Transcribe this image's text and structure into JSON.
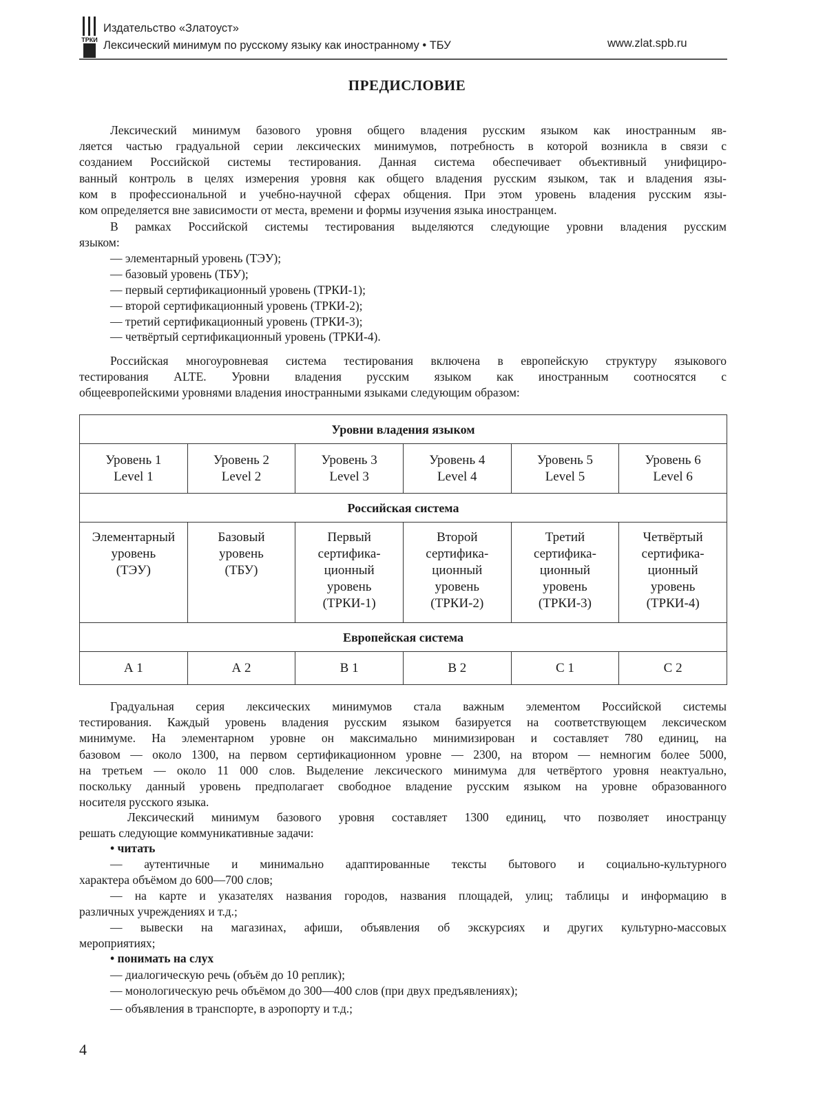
{
  "header": {
    "publisher": "Издательство «Златоуст»",
    "book": "Лексический минимум по русскому языку как иностранному • ТБУ",
    "url": "www.zlat.spb.ru",
    "logo_text": "ТРКИ"
  },
  "title": "ПРЕДИСЛОВИЕ",
  "blocks_top": [
    {
      "cls": "ind",
      "lines": [
        "Лексический минимум базового уровня общего владения русским языком как иностранным яв-",
        "ляется частью градуальной серии лексических минимумов, потребность в которой возникла в связи с",
        "созданием Российской системы тестирования. Данная система обеспечивает объективный унифициро-",
        "ванный контроль в целях измерения уровня как общего владения русским языком, так и владения язы-",
        "ком в профессиональной и учебно-научной сферах общения. При этом уровень владения русским язы-",
        "ком определяется вне зависимости от места, времени и формы изучения языка иностранцем."
      ]
    },
    {
      "cls": "ind",
      "lines": [
        "В рамках Российской системы тестирования выделяются следующие уровни владения русским",
        "языком:"
      ]
    },
    {
      "cls": "ind",
      "lines": [
        "— элементарный уровень (ТЭУ);"
      ]
    },
    {
      "cls": "ind",
      "lines": [
        "— базовый уровень (ТБУ);"
      ]
    },
    {
      "cls": "ind",
      "lines": [
        "— первый сертификационный уровень (ТРКИ-1);"
      ]
    },
    {
      "cls": "ind",
      "lines": [
        "— второй сертификационный уровень (ТРКИ-2);"
      ]
    },
    {
      "cls": "ind",
      "lines": [
        "— третий сертификационный уровень (ТРКИ-3);"
      ]
    },
    {
      "cls": "ind",
      "lines": [
        "— четвёртый сертификационный уровень (ТРКИ-4)."
      ]
    },
    {
      "cls": "ind",
      "lines": [
        "Российская многоуровневая система тестирования включена в европейскую структуру языкового",
        "тестирования ALTE. Уровни владения русским языком как иностранным соотносятся с",
        "общеевропейскими уровнями владения иностранными языками следующим образом:"
      ]
    }
  ],
  "table": {
    "header": "Уровни владения языком",
    "levels": [
      [
        "Уровень 1",
        "Level 1"
      ],
      [
        "Уровень 2",
        "Level 2"
      ],
      [
        "Уровень 3",
        "Level 3"
      ],
      [
        "Уровень 4",
        "Level 4"
      ],
      [
        "Уровень 5",
        "Level 5"
      ],
      [
        "Уровень 6",
        "Level 6"
      ]
    ],
    "russian_header": "Российская система",
    "russian": [
      [
        "Элементарный",
        "уровень",
        "(ТЭУ)"
      ],
      [
        "Базовый",
        "уровень",
        "(ТБУ)"
      ],
      [
        "Первый",
        "сертифика-",
        "ционный",
        "уровень",
        "(ТРКИ-1)"
      ],
      [
        "Второй",
        "сертифика-",
        "ционный",
        "уровень",
        "(ТРКИ-2)"
      ],
      [
        "Третий",
        "сертифика-",
        "ционный",
        "уровень",
        "(ТРКИ-3)"
      ],
      [
        "Четвёртый",
        "сертифика-",
        "ционный",
        "уровень",
        "(ТРКИ-4)"
      ]
    ],
    "european_header": "Европейская система",
    "european": [
      "А 1",
      "А 2",
      "В 1",
      "В 2",
      "С 1",
      "С 2"
    ]
  },
  "blocks_bottom": [
    {
      "cls": "ind",
      "lines": [
        "Градуальная серия лексических минимумов стала важным элементом Российской системы",
        "тестирования. Каждый уровень владения русским языком базируется на соответствующем лексическом",
        "минимуме. На элементарном уровне он максимально минимизирован и составляет 780 единиц, на",
        "базовом — около 1300, на первом сертификационном уровне — 2300, на втором — немногим более 5000,",
        "на третьем — около 11 000 слов. Выделение лексического минимума для четвёртого уровня неактуально,",
        "поскольку данный уровень предполагает свободное владение русским языком на уровне образованного",
        "носителя русского языка."
      ]
    },
    {
      "cls": "ind2",
      "lines": [
        "Лексический минимум базового уровня составляет 1300 единиц, что позволяет иностранцу",
        "решать следующие коммуникативные задачи:"
      ]
    },
    {
      "cls": "ind b",
      "lines": [
        "• читать"
      ]
    },
    {
      "cls": "ind",
      "lines": [
        "— аутентичные и минимально адаптированные тексты бытового и социально-культурного",
        "характера объёмом до 600—700 слов;"
      ]
    },
    {
      "cls": "ind",
      "lines": [
        "— на карте и указателях названия городов, названия площадей, улиц; таблицы и информацию в",
        "различных учреждениях и т.д.;"
      ]
    },
    {
      "cls": "ind",
      "lines": [
        "— вывески на магазинах, афиши, объявления об экскурсиях и других культурно-массовых",
        "мероприятиях;"
      ]
    },
    {
      "cls": "ind b",
      "lines": [
        "• понимать на слух"
      ]
    },
    {
      "cls": "ind",
      "lines": [
        "— диалогическую речь (объём до 10 реплик);"
      ]
    },
    {
      "cls": "ind",
      "lines": [
        "— монологическую речь объёмом до 300—400 слов (при двух предъявлениях);"
      ]
    },
    {
      "cls": "ind",
      "lines": [
        "— объявления в транспорте, в аэропорту и т.д.;"
      ]
    }
  ],
  "page_number": "4"
}
